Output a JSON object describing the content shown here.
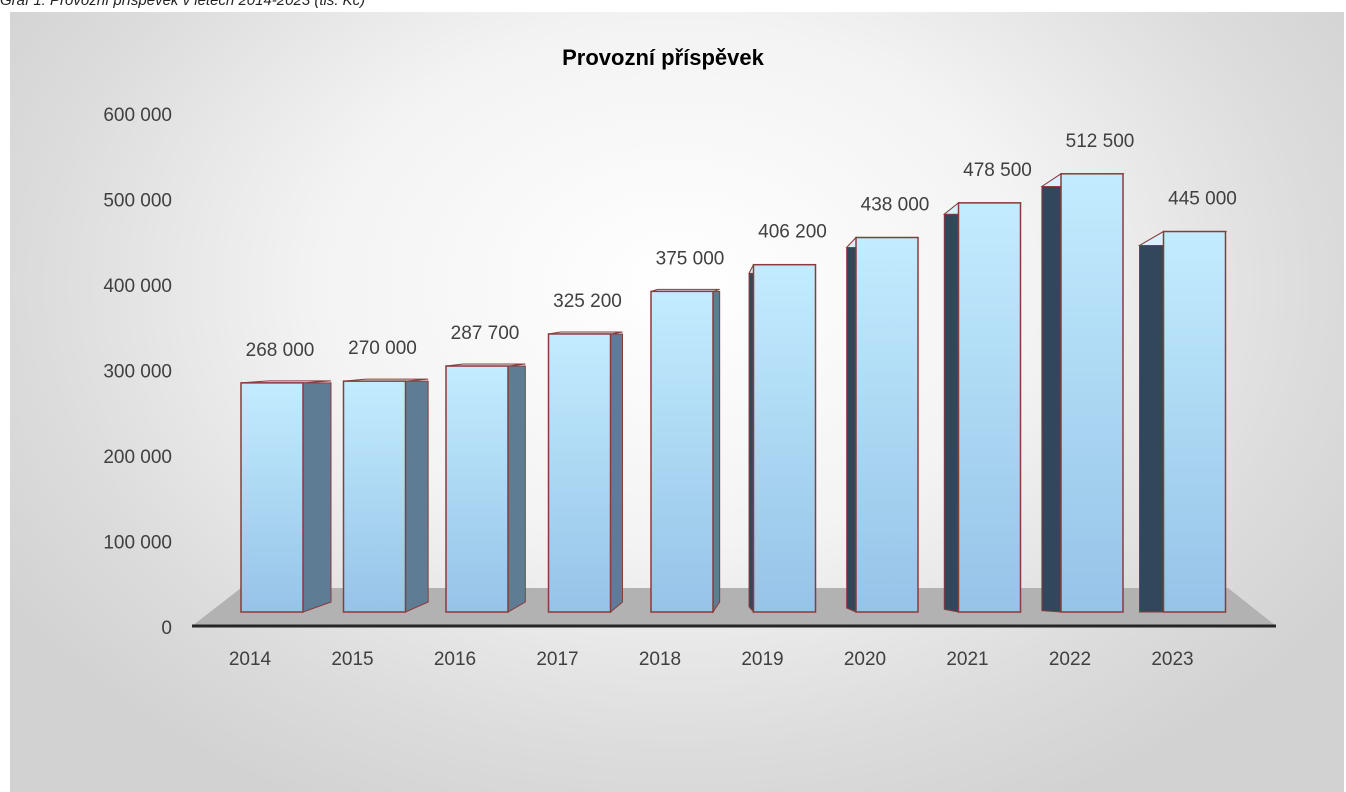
{
  "caption": "Graf 1: Provozní příspěvek v letech 2014-2023 (tis. Kč)",
  "chart_data": {
    "type": "bar",
    "title": "Provozní příspěvek",
    "xlabel": "",
    "ylabel": "",
    "categories": [
      "2014",
      "2015",
      "2016",
      "2017",
      "2018",
      "2019",
      "2020",
      "2021",
      "2022",
      "2023"
    ],
    "values": [
      268000,
      270000,
      287700,
      325200,
      375000,
      406200,
      438000,
      478500,
      512500,
      445000
    ],
    "data_labels": [
      "268 000",
      "270 000",
      "287 700",
      "325 200",
      "375 000",
      "406 200",
      "438 000",
      "478 500",
      "512 500",
      "445 000"
    ],
    "ylim": [
      0,
      600000
    ],
    "y_ticks": [
      0,
      100000,
      200000,
      300000,
      400000,
      500000,
      600000
    ],
    "y_tick_labels": [
      "0",
      "100 000",
      "200 000",
      "300 000",
      "400 000",
      "500 000",
      "600 000"
    ],
    "grid": false,
    "style": "3d-column",
    "colors": {
      "bar_front_top": "#c2ecfe",
      "bar_front_bottom": "#96c3e8",
      "bar_outline": "#8a3b3b",
      "floor": "#b2b2b2",
      "axis_line": "#262626"
    }
  }
}
